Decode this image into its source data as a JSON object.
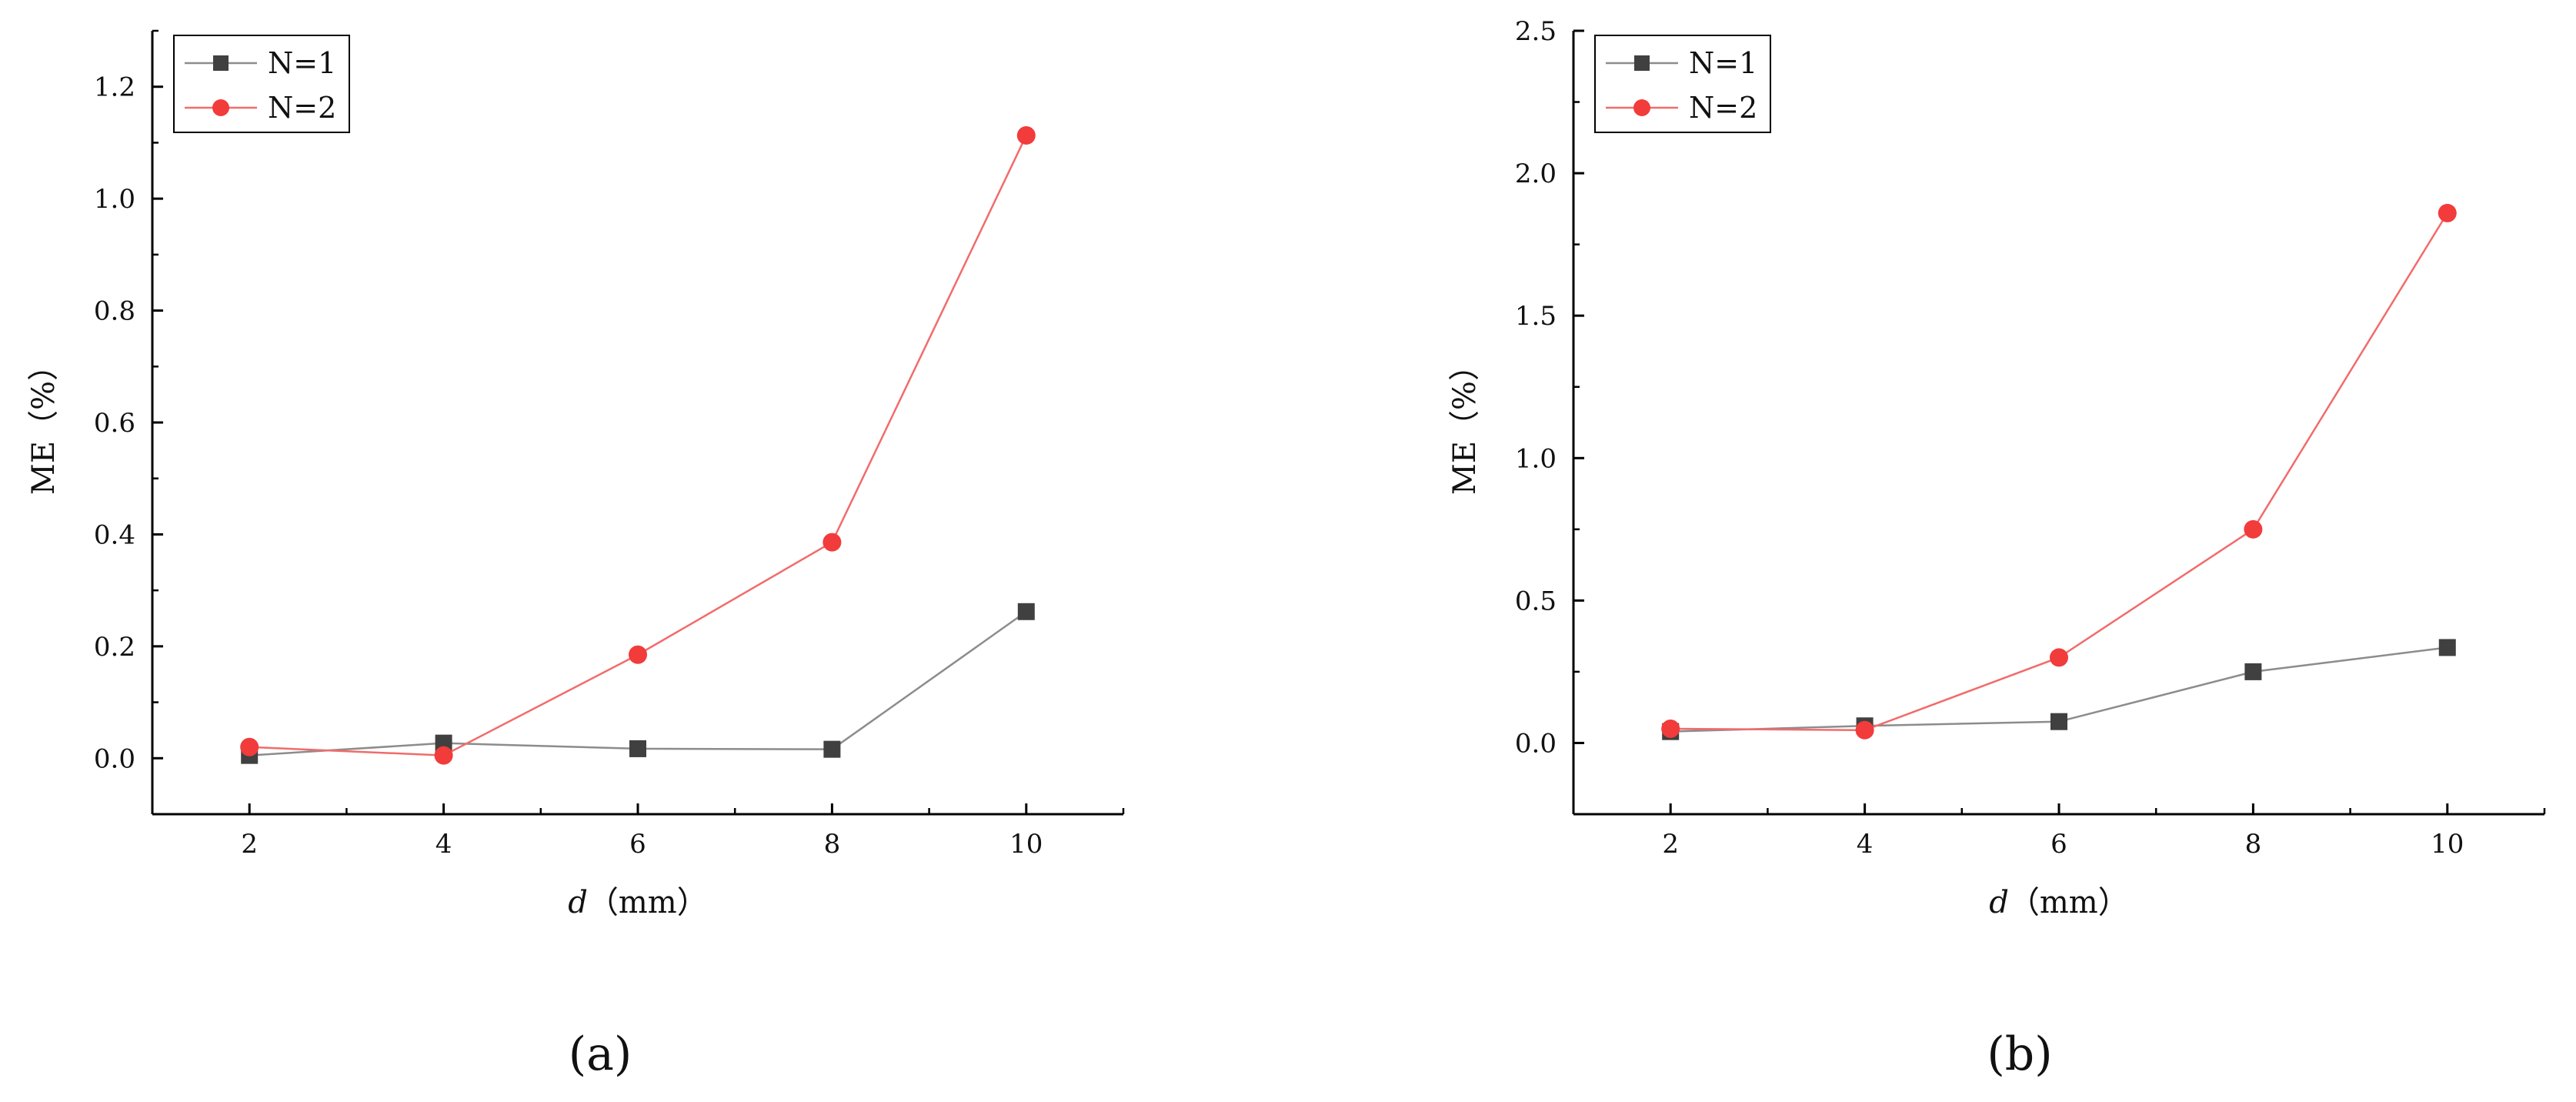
{
  "chart_data": [
    {
      "type": "line",
      "panel_label": "(a)",
      "xlabel": "d（mm）",
      "xlabel_italic": "d",
      "xlabel_unit": "（mm）",
      "ylabel": "ME（%）",
      "x": [
        2,
        4,
        6,
        8,
        10
      ],
      "xlim": [
        1,
        11
      ],
      "ylim": [
        -0.1,
        1.3
      ],
      "xticks": [
        "2",
        "4",
        "6",
        "8",
        "10"
      ],
      "xtick_values": [
        2,
        4,
        6,
        8,
        10
      ],
      "yticks": [
        "0.0",
        "0.2",
        "0.4",
        "0.6",
        "0.8",
        "1.0",
        "1.2"
      ],
      "ytick_values": [
        0.0,
        0.2,
        0.4,
        0.6,
        0.8,
        1.0,
        1.2
      ],
      "legend_position": "top-left",
      "grid": false,
      "series": [
        {
          "name": "N=1",
          "marker": "square",
          "color": "#404040",
          "line_color": "#8c8c8c",
          "values": [
            0.005,
            0.027,
            0.017,
            0.016,
            0.262
          ]
        },
        {
          "name": "N=2",
          "marker": "circle",
          "color": "#f23b3b",
          "line_color": "#f26b6b",
          "values": [
            0.02,
            0.005,
            0.185,
            0.386,
            1.113
          ]
        }
      ]
    },
    {
      "type": "line",
      "panel_label": "(b)",
      "xlabel": "d（mm）",
      "xlabel_italic": "d",
      "xlabel_unit": "（mm）",
      "ylabel": "ME（%）",
      "x": [
        2,
        4,
        6,
        8,
        10
      ],
      "xlim": [
        1,
        11
      ],
      "ylim": [
        -0.25,
        2.5
      ],
      "xticks": [
        "2",
        "4",
        "6",
        "8",
        "10"
      ],
      "xtick_values": [
        2,
        4,
        6,
        8,
        10
      ],
      "yticks": [
        "0.0",
        "0.5",
        "1.0",
        "1.5",
        "2.0",
        "2.5"
      ],
      "ytick_values": [
        0.0,
        0.5,
        1.0,
        1.5,
        2.0,
        2.5
      ],
      "legend_position": "top-left",
      "grid": false,
      "series": [
        {
          "name": "N=1",
          "marker": "square",
          "color": "#404040",
          "line_color": "#8c8c8c",
          "values": [
            0.04,
            0.06,
            0.075,
            0.25,
            0.335
          ]
        },
        {
          "name": "N=2",
          "marker": "circle",
          "color": "#f23b3b",
          "line_color": "#f26b6b",
          "values": [
            0.05,
            0.045,
            0.3,
            0.75,
            1.86
          ]
        }
      ]
    }
  ]
}
